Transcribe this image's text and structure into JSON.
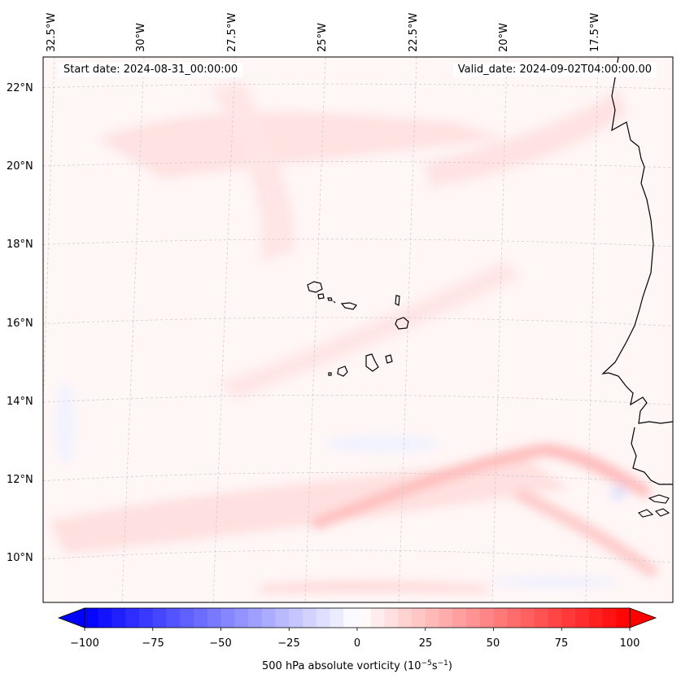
{
  "header": {
    "start_date": "Start date: 2024-08-31_00:00:00",
    "valid_date": "Valid_date: 2024-09-02T04:00:00.00"
  },
  "map": {
    "lon_labels": [
      "32.5°W",
      "30°W",
      "27.5°W",
      "25°W",
      "22.5°W",
      "20°W",
      "17.5°W"
    ],
    "lat_labels": [
      "22°N",
      "20°N",
      "18°N",
      "16°N",
      "14°N",
      "12°N",
      "10°N"
    ],
    "field": "500 hPa absolute vorticity",
    "colors": {
      "coast": "#000000",
      "grid": "#bfbfbf",
      "positive": "#ff0000",
      "negative": "#0000ff"
    }
  },
  "colorbar": {
    "ticks": [
      "−100",
      "−75",
      "−50",
      "−25",
      "0",
      "25",
      "50",
      "75",
      "100"
    ],
    "min": -100,
    "max": 100,
    "levels": 41,
    "label": "500 hPa absolute vorticity (10",
    "label_exp1": "−5",
    "label_mid": "s",
    "label_exp2": "−1",
    "label_end": ")"
  }
}
